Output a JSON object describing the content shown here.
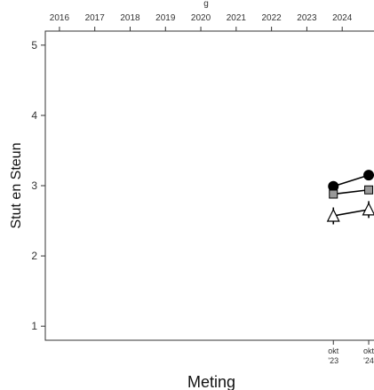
{
  "chart_data": {
    "type": "line",
    "title": "",
    "xlabel": "Meting",
    "ylabel": "Stut en Steun",
    "top_axis": {
      "ticks": [
        2016,
        2017,
        2018,
        2019,
        2020,
        2021,
        2022,
        2023,
        2024
      ],
      "range": [
        2015.6,
        2024.95
      ],
      "label_fragment": "g"
    },
    "bottom_axis": {
      "categories": [
        {
          "x": 2023.75,
          "label": [
            "okt",
            "'23"
          ]
        },
        {
          "x": 2024.75,
          "label": [
            "okt",
            "'24"
          ]
        }
      ]
    },
    "ylim": [
      0.8,
      5.2
    ],
    "yticks": [
      1,
      2,
      3,
      4,
      5
    ],
    "grid": false,
    "legend": "none",
    "series": [
      {
        "marker": "circle",
        "color": "#000000",
        "x": [
          2023.75,
          2024.75
        ],
        "y": [
          2.99,
          3.15
        ],
        "err": [
          0.05,
          0.05
        ]
      },
      {
        "marker": "square",
        "color": "#999999",
        "x": [
          2023.75,
          2024.75
        ],
        "y": [
          2.88,
          2.94
        ],
        "err": [
          0.06,
          0.06
        ]
      },
      {
        "marker": "triangle",
        "color": "#ffffff",
        "x": [
          2023.75,
          2024.75
        ],
        "y": [
          2.57,
          2.66
        ],
        "err": [
          0.12,
          0.12
        ]
      }
    ]
  }
}
